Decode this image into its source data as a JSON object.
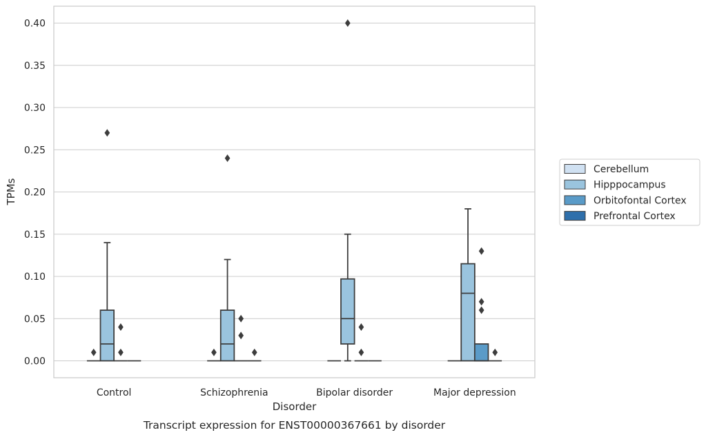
{
  "chart_data": {
    "type": "box",
    "title": "",
    "caption": "Transcript expression for ENST00000367661 by disorder",
    "xlabel": "Disorder",
    "ylabel": "TPMs",
    "ylim": [
      -0.02,
      0.42
    ],
    "yticks": [
      "0.00",
      "0.05",
      "0.10",
      "0.15",
      "0.20",
      "0.25",
      "0.30",
      "0.35",
      "0.40"
    ],
    "grid": true,
    "legend_position": "right",
    "categories": [
      "Control",
      "Schizophrenia",
      "Bipolar disorder",
      "Major depression"
    ],
    "series": [
      {
        "name": "Cerebellum",
        "color": "#d0e1f2",
        "boxes": [
          {
            "q1": 0,
            "median": 0,
            "q3": 0,
            "whisker_low": 0,
            "whisker_high": 0,
            "outliers": [
              0.01
            ]
          },
          {
            "q1": 0,
            "median": 0,
            "q3": 0,
            "whisker_low": 0,
            "whisker_high": 0,
            "outliers": [
              0.01
            ]
          },
          {
            "q1": 0,
            "median": 0,
            "q3": 0,
            "whisker_low": 0,
            "whisker_high": 0,
            "outliers": []
          },
          {
            "q1": 0,
            "median": 0,
            "q3": 0,
            "whisker_low": 0,
            "whisker_high": 0,
            "outliers": []
          }
        ]
      },
      {
        "name": "Hipppocampus",
        "color": "#9ac4de",
        "boxes": [
          {
            "q1": 0,
            "median": 0.02,
            "q3": 0.06,
            "whisker_low": 0,
            "whisker_high": 0.14,
            "outliers": [
              0.27
            ]
          },
          {
            "q1": 0,
            "median": 0.02,
            "q3": 0.06,
            "whisker_low": 0,
            "whisker_high": 0.12,
            "outliers": [
              0.24
            ]
          },
          {
            "q1": 0.02,
            "median": 0.05,
            "q3": 0.097,
            "whisker_low": 0,
            "whisker_high": 0.15,
            "outliers": [
              0.4
            ]
          },
          {
            "q1": 0,
            "median": 0.08,
            "q3": 0.115,
            "whisker_low": 0,
            "whisker_high": 0.18,
            "outliers": []
          }
        ]
      },
      {
        "name": "Orbitofontal Cortex",
        "color": "#5a9bc8",
        "boxes": [
          {
            "q1": 0,
            "median": 0,
            "q3": 0,
            "whisker_low": 0,
            "whisker_high": 0,
            "outliers": [
              0.04,
              0.01
            ]
          },
          {
            "q1": 0,
            "median": 0,
            "q3": 0,
            "whisker_low": 0,
            "whisker_high": 0,
            "outliers": [
              0.05,
              0.03
            ]
          },
          {
            "q1": 0,
            "median": 0,
            "q3": 0,
            "whisker_low": 0,
            "whisker_high": 0,
            "outliers": [
              0.04,
              0.01
            ]
          },
          {
            "q1": 0,
            "median": 0,
            "q3": 0.02,
            "whisker_low": 0,
            "whisker_high": 0.02,
            "outliers": [
              0.13,
              0.07,
              0.06
            ]
          }
        ]
      },
      {
        "name": "Prefrontal Cortex",
        "color": "#2e6fab",
        "boxes": [
          {
            "q1": 0,
            "median": 0,
            "q3": 0,
            "whisker_low": 0,
            "whisker_high": 0,
            "outliers": []
          },
          {
            "q1": 0,
            "median": 0,
            "q3": 0,
            "whisker_low": 0,
            "whisker_high": 0,
            "outliers": [
              0.01
            ]
          },
          {
            "q1": 0,
            "median": 0,
            "q3": 0,
            "whisker_low": 0,
            "whisker_high": 0,
            "outliers": []
          },
          {
            "q1": 0,
            "median": 0,
            "q3": 0,
            "whisker_low": 0,
            "whisker_high": 0,
            "outliers": [
              0.01
            ]
          }
        ]
      }
    ]
  },
  "colors": {
    "axis_frame": "#cccccc",
    "grid": "#cccccc",
    "box_edge": "#3d3d3d",
    "text": "#262626"
  }
}
